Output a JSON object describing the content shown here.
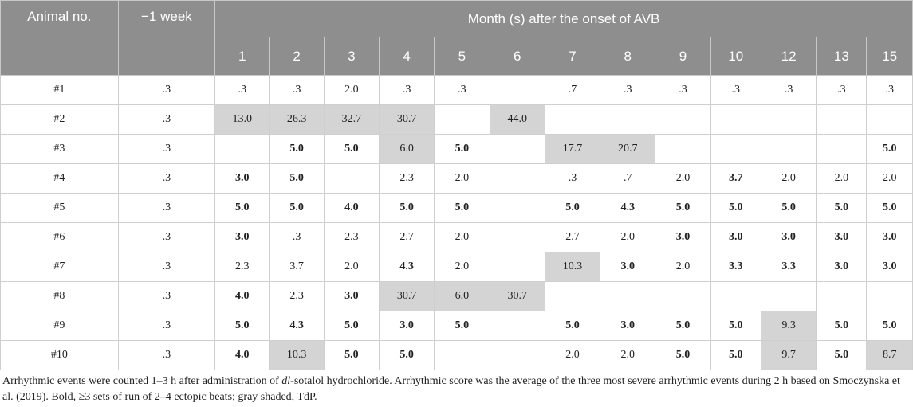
{
  "table": {
    "header": {
      "animal_col": "Animal no.",
      "baseline_col": "−1 week",
      "months_group": "Month (s) after the onset of AVB",
      "months": [
        "1",
        "2",
        "3",
        "4",
        "5",
        "6",
        "7",
        "8",
        "9",
        "10",
        "12",
        "13",
        "15"
      ]
    },
    "rows": [
      {
        "animal": "#1",
        "baseline": ".3",
        "cells": [
          {
            "v": ".3"
          },
          {
            "v": ".3"
          },
          {
            "v": "2.0"
          },
          {
            "v": ".3"
          },
          {
            "v": ".3"
          },
          {
            "v": ""
          },
          {
            "v": ".7"
          },
          {
            "v": ".3"
          },
          {
            "v": ".3"
          },
          {
            "v": ".3"
          },
          {
            "v": ".3"
          },
          {
            "v": ".3"
          },
          {
            "v": ".3"
          }
        ]
      },
      {
        "animal": "#2",
        "baseline": ".3",
        "cells": [
          {
            "v": "13.0",
            "shaded": true
          },
          {
            "v": "26.3",
            "shaded": true
          },
          {
            "v": "32.7",
            "shaded": true
          },
          {
            "v": "30.7",
            "shaded": true
          },
          {
            "v": ""
          },
          {
            "v": "44.0",
            "shaded": true
          },
          {
            "v": ""
          },
          {
            "v": ""
          },
          {
            "v": ""
          },
          {
            "v": ""
          },
          {
            "v": ""
          },
          {
            "v": ""
          },
          {
            "v": ""
          }
        ]
      },
      {
        "animal": "#3",
        "baseline": ".3",
        "cells": [
          {
            "v": ""
          },
          {
            "v": "5.0",
            "bold": true
          },
          {
            "v": "5.0",
            "bold": true
          },
          {
            "v": "6.0",
            "shaded": true
          },
          {
            "v": "5.0",
            "bold": true
          },
          {
            "v": ""
          },
          {
            "v": "17.7",
            "shaded": true
          },
          {
            "v": "20.7",
            "shaded": true
          },
          {
            "v": ""
          },
          {
            "v": ""
          },
          {
            "v": ""
          },
          {
            "v": ""
          },
          {
            "v": "5.0",
            "bold": true
          }
        ]
      },
      {
        "animal": "#4",
        "baseline": ".3",
        "cells": [
          {
            "v": "3.0",
            "bold": true
          },
          {
            "v": "5.0",
            "bold": true
          },
          {
            "v": ""
          },
          {
            "v": "2.3"
          },
          {
            "v": "2.0"
          },
          {
            "v": ""
          },
          {
            "v": ".3"
          },
          {
            "v": ".7"
          },
          {
            "v": "2.0"
          },
          {
            "v": "3.7",
            "bold": true
          },
          {
            "v": "2.0"
          },
          {
            "v": "2.0"
          },
          {
            "v": "2.0"
          }
        ]
      },
      {
        "animal": "#5",
        "baseline": ".3",
        "cells": [
          {
            "v": "5.0",
            "bold": true
          },
          {
            "v": "5.0",
            "bold": true
          },
          {
            "v": "4.0",
            "bold": true
          },
          {
            "v": "5.0",
            "bold": true
          },
          {
            "v": "5.0",
            "bold": true
          },
          {
            "v": ""
          },
          {
            "v": "5.0",
            "bold": true
          },
          {
            "v": "4.3",
            "bold": true
          },
          {
            "v": "5.0",
            "bold": true
          },
          {
            "v": "5.0",
            "bold": true
          },
          {
            "v": "5.0",
            "bold": true
          },
          {
            "v": "5.0",
            "bold": true
          },
          {
            "v": "5.0",
            "bold": true
          }
        ]
      },
      {
        "animal": "#6",
        "baseline": ".3",
        "cells": [
          {
            "v": "3.0",
            "bold": true
          },
          {
            "v": ".3"
          },
          {
            "v": "2.3"
          },
          {
            "v": "2.7"
          },
          {
            "v": "2.0"
          },
          {
            "v": ""
          },
          {
            "v": "2.7"
          },
          {
            "v": "2.0"
          },
          {
            "v": "3.0",
            "bold": true
          },
          {
            "v": "3.0",
            "bold": true
          },
          {
            "v": "3.0",
            "bold": true
          },
          {
            "v": "3.0",
            "bold": true
          },
          {
            "v": "3.0",
            "bold": true
          }
        ]
      },
      {
        "animal": "#7",
        "baseline": ".3",
        "cells": [
          {
            "v": "2.3"
          },
          {
            "v": "3.7"
          },
          {
            "v": "2.0"
          },
          {
            "v": "4.3",
            "bold": true
          },
          {
            "v": "2.0"
          },
          {
            "v": ""
          },
          {
            "v": "10.3",
            "shaded": true
          },
          {
            "v": "3.0",
            "bold": true
          },
          {
            "v": "2.0"
          },
          {
            "v": "3.3",
            "bold": true
          },
          {
            "v": "3.3",
            "bold": true
          },
          {
            "v": "3.0",
            "bold": true
          },
          {
            "v": "3.0",
            "bold": true
          }
        ]
      },
      {
        "animal": "#8",
        "baseline": ".3",
        "cells": [
          {
            "v": "4.0",
            "bold": true
          },
          {
            "v": "2.3"
          },
          {
            "v": "3.0",
            "bold": true
          },
          {
            "v": "30.7",
            "shaded": true
          },
          {
            "v": "6.0",
            "shaded": true
          },
          {
            "v": "30.7",
            "shaded": true
          },
          {
            "v": ""
          },
          {
            "v": ""
          },
          {
            "v": ""
          },
          {
            "v": ""
          },
          {
            "v": ""
          },
          {
            "v": ""
          },
          {
            "v": ""
          }
        ]
      },
      {
        "animal": "#9",
        "baseline": ".3",
        "cells": [
          {
            "v": "5.0",
            "bold": true
          },
          {
            "v": "4.3",
            "bold": true
          },
          {
            "v": "5.0",
            "bold": true
          },
          {
            "v": "3.0",
            "bold": true
          },
          {
            "v": "5.0",
            "bold": true
          },
          {
            "v": ""
          },
          {
            "v": "5.0",
            "bold": true
          },
          {
            "v": "3.0",
            "bold": true
          },
          {
            "v": "5.0",
            "bold": true
          },
          {
            "v": "5.0",
            "bold": true
          },
          {
            "v": "9.3",
            "shaded": true
          },
          {
            "v": "5.0",
            "bold": true
          },
          {
            "v": "5.0",
            "bold": true
          }
        ]
      },
      {
        "animal": "#10",
        "baseline": ".3",
        "cells": [
          {
            "v": "4.0",
            "bold": true
          },
          {
            "v": "10.3",
            "shaded": true
          },
          {
            "v": "5.0",
            "bold": true
          },
          {
            "v": "5.0",
            "bold": true
          },
          {
            "v": ""
          },
          {
            "v": ""
          },
          {
            "v": "2.0"
          },
          {
            "v": "2.0"
          },
          {
            "v": "5.0",
            "bold": true
          },
          {
            "v": "5.0",
            "bold": true
          },
          {
            "v": "9.7",
            "shaded": true
          },
          {
            "v": "5.0",
            "bold": true
          },
          {
            "v": "8.7",
            "shaded": true
          }
        ]
      }
    ]
  },
  "footnote": {
    "part1": "Arrhythmic events were counted 1–3 h after administration of ",
    "italic": "dl",
    "part2": "-sotalol hydrochloride. Arrhythmic score was the average of the three most severe arrhythmic events during 2 h based on Smoczynska et al. (2019). Bold, ≥3 sets of run of 2–4 ectopic beats; gray shaded, TdP."
  },
  "colors": {
    "header_bg": "#8e8e8e",
    "header_text": "#ffffff",
    "shade": "#d4d4d4",
    "grid": "#cfcfcf"
  }
}
